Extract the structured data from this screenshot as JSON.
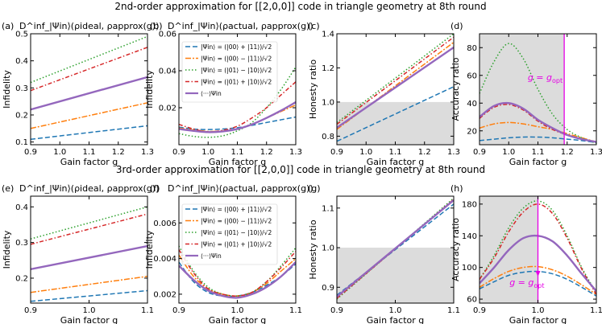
{
  "rows": [
    {
      "title": "2nd-order approximation for [[2,0,0]] code in triangle geometry at 8th round"
    },
    {
      "title": "3rd-order approximation for [[2,0,0]] code in triangle geometry at 8th round"
    }
  ],
  "annotation": "g = g",
  "annotation_sub": "opt",
  "legend": {
    "entries": [
      "|Ψin⟩ = (|00⟩ + |11⟩)/√2",
      "|Ψin⟩ = (|00⟩ − |11⟩)/√2",
      "|Ψin⟩ = (|01⟩ − |10⟩)/√2",
      "|Ψin⟩ = (|01⟩ + |10⟩)/√2",
      "⟨···⟩Ψin"
    ]
  },
  "series_styles": [
    {
      "name": "(|00>+|11>)/√2",
      "color": "#1f77b4",
      "dash": "6,3"
    },
    {
      "name": "(|00>-|11>)/√2",
      "color": "#ff7f0e",
      "dash": "7,2,2,2"
    },
    {
      "name": "(|01>-|10>)/√2",
      "color": "#2ca02c",
      "dash": "1.5,2.5"
    },
    {
      "name": "(|01>+|10>)/√2",
      "color": "#d62728",
      "dash": "5,2.5,1.5,2.5"
    },
    {
      "name": "average",
      "color": "#9467bd",
      "dash": ""
    }
  ],
  "chart_data": [
    {
      "type": "line",
      "panel": "(a)",
      "title": "D^inf_|Ψin⟩(ρideal, ρapprox(g))",
      "xlabel": "Gain factor g",
      "ylabel": "Infidelity",
      "xlim": [
        0.9,
        1.3
      ],
      "ylim": [
        0.09,
        0.5
      ],
      "xticks": [
        0.9,
        1.0,
        1.1,
        1.2,
        1.3
      ],
      "yticks": [
        0.1,
        0.2,
        0.3,
        0.4,
        0.5
      ],
      "x": [
        0.9,
        1.3
      ],
      "series": [
        {
          "name": "(|00>+|11>)/√2",
          "values": [
            0.11,
            0.16
          ]
        },
        {
          "name": "(|00>-|11>)/√2",
          "values": [
            0.15,
            0.245
          ]
        },
        {
          "name": "(|01>-|10>)/√2",
          "values": [
            0.32,
            0.49
          ]
        },
        {
          "name": "(|01>+|10>)/√2",
          "values": [
            0.29,
            0.45
          ]
        },
        {
          "name": "average",
          "values": [
            0.22,
            0.34
          ]
        }
      ]
    },
    {
      "type": "line",
      "panel": "(b)",
      "title": "D^inf_|Ψin⟩(ρactual, ρapprox(g))",
      "xlabel": "Gain factor g",
      "ylabel": "Infidelity",
      "xlim": [
        0.9,
        1.3
      ],
      "ylim": [
        0,
        0.06
      ],
      "xticks": [
        0.9,
        1.0,
        1.1,
        1.2,
        1.3
      ],
      "yticks": [
        0.02,
        0.04,
        0.06
      ],
      "x": [
        0.9,
        0.95,
        1.0,
        1.05,
        1.1,
        1.15,
        1.2,
        1.25,
        1.3
      ],
      "series": [
        {
          "name": "(|00>+|11>)/√2",
          "values": [
            0.0095,
            0.0085,
            0.0082,
            0.0085,
            0.0092,
            0.0105,
            0.012,
            0.0135,
            0.015
          ]
        },
        {
          "name": "(|00>-|11>)/√2",
          "values": [
            0.009,
            0.008,
            0.0072,
            0.0075,
            0.0085,
            0.011,
            0.0145,
            0.018,
            0.0215
          ]
        },
        {
          "name": "(|01>-|10>)/√2",
          "values": [
            0.006,
            0.0045,
            0.004,
            0.0048,
            0.0075,
            0.012,
            0.02,
            0.03,
            0.042
          ]
        },
        {
          "name": "(|01>+|10>)/√2",
          "values": [
            0.011,
            0.0085,
            0.007,
            0.0078,
            0.01,
            0.0145,
            0.02,
            0.027,
            0.034
          ]
        },
        {
          "name": "average",
          "values": [
            0.0085,
            0.0075,
            0.0068,
            0.0072,
            0.0085,
            0.011,
            0.0145,
            0.0185,
            0.023
          ]
        }
      ]
    },
    {
      "type": "line",
      "panel": "(c)",
      "title": "",
      "xlabel": "Gain factor g",
      "ylabel": "Honesty ratio",
      "xlim": [
        0.9,
        1.3
      ],
      "ylim": [
        0.75,
        1.4
      ],
      "xticks": [
        0.9,
        1.0,
        1.1,
        1.2,
        1.3
      ],
      "yticks": [
        0.8,
        1.0,
        1.2,
        1.4
      ],
      "shade_below": 1.0,
      "x": [
        0.9,
        1.3
      ],
      "series": [
        {
          "name": "(|00>+|11>)/√2",
          "values": [
            0.77,
            1.09
          ]
        },
        {
          "name": "(|00>-|11>)/√2",
          "values": [
            0.84,
            1.35
          ]
        },
        {
          "name": "(|01>-|10>)/√2",
          "values": [
            0.88,
            1.4
          ]
        },
        {
          "name": "(|01>+|10>)/√2",
          "values": [
            0.87,
            1.38
          ]
        },
        {
          "name": "average",
          "values": [
            0.85,
            1.32
          ]
        }
      ]
    },
    {
      "type": "line",
      "panel": "(d)",
      "title": "",
      "xlabel": "Gain factor g",
      "ylabel": "Accuracy ratio",
      "xlim": [
        0.9,
        1.3
      ],
      "ylim": [
        10,
        90
      ],
      "xticks": [
        0.9,
        1.0,
        1.1,
        1.2,
        1.3
      ],
      "yticks": [
        20,
        40,
        60,
        80
      ],
      "shade_left_of": 1.19,
      "vline": 1.19,
      "x": [
        0.9,
        0.95,
        1.0,
        1.05,
        1.1,
        1.15,
        1.2,
        1.25,
        1.3
      ],
      "series": [
        {
          "name": "(|00>+|11>)/√2",
          "values": [
            13,
            14,
            15,
            15.5,
            15.5,
            15,
            14,
            13,
            11.5
          ]
        },
        {
          "name": "(|00>-|11>)/√2",
          "values": [
            22,
            25,
            26,
            25,
            23,
            21,
            18,
            15,
            12
          ]
        },
        {
          "name": "(|01>-|10>)/√2",
          "values": [
            47,
            70,
            83,
            72,
            50,
            32,
            21,
            15,
            11
          ]
        },
        {
          "name": "(|01>+|10>)/√2",
          "values": [
            29,
            37,
            39,
            35,
            27,
            21,
            17,
            14,
            12
          ]
        },
        {
          "name": "average",
          "values": [
            30,
            38,
            40,
            36,
            28,
            22,
            17,
            14,
            12
          ]
        }
      ]
    },
    {
      "type": "line",
      "panel": "(e)",
      "title": "D^inf_|Ψin⟩(ρideal, ρapprox(g))",
      "xlabel": "Gain factor g",
      "ylabel": "Infidelity",
      "xlim": [
        0.9,
        1.1
      ],
      "ylim": [
        0.13,
        0.43
      ],
      "xticks": [
        0.9,
        1.0,
        1.1
      ],
      "yticks": [
        0.2,
        0.3,
        0.4
      ],
      "x": [
        0.9,
        1.1
      ],
      "series": [
        {
          "name": "(|00>+|11>)/√2",
          "values": [
            0.135,
            0.165
          ]
        },
        {
          "name": "(|00>-|11>)/√2",
          "values": [
            0.16,
            0.205
          ]
        },
        {
          "name": "(|01>-|10>)/√2",
          "values": [
            0.31,
            0.4
          ]
        },
        {
          "name": "(|01>+|10>)/√2",
          "values": [
            0.295,
            0.38
          ]
        },
        {
          "name": "average",
          "values": [
            0.225,
            0.29
          ]
        }
      ]
    },
    {
      "type": "line",
      "panel": "(f)",
      "title": "D^inf_|Ψin⟩(ρactual, ρapprox(g))",
      "xlabel": "Gain factor g",
      "ylabel": "Infidelity",
      "xlim": [
        0.9,
        1.1
      ],
      "ylim": [
        0.0015,
        0.0075
      ],
      "xticks": [
        0.9,
        1.0,
        1.1
      ],
      "yticks": [
        0.002,
        0.004,
        0.006
      ],
      "x": [
        0.9,
        0.925,
        0.95,
        0.975,
        1.0,
        1.025,
        1.05,
        1.075,
        1.1
      ],
      "series": [
        {
          "name": "(|00>+|11>)/√2",
          "values": [
            0.0038,
            0.0027,
            0.0021,
            0.0019,
            0.0019,
            0.0021,
            0.0025,
            0.003,
            0.0037
          ]
        },
        {
          "name": "(|00>-|11>)/√2",
          "values": [
            0.0042,
            0.003,
            0.0023,
            0.002,
            0.0019,
            0.0021,
            0.0026,
            0.0033,
            0.004
          ]
        },
        {
          "name": "(|01>-|10>)/√2",
          "values": [
            0.0047,
            0.0033,
            0.0024,
            0.002,
            0.0019,
            0.0021,
            0.0027,
            0.0036,
            0.0046
          ]
        },
        {
          "name": "(|01>+|10>)/√2",
          "values": [
            0.0045,
            0.0032,
            0.0023,
            0.002,
            0.0019,
            0.0021,
            0.0027,
            0.0035,
            0.0044
          ]
        },
        {
          "name": "average",
          "values": [
            0.0036,
            0.0028,
            0.0022,
            0.0019,
            0.0018,
            0.002,
            0.0024,
            0.003,
            0.0038
          ]
        }
      ]
    },
    {
      "type": "line",
      "panel": "(g)",
      "title": "",
      "xlabel": "Gain factor g",
      "ylabel": "Honesty ratio",
      "xlim": [
        0.9,
        1.1
      ],
      "ylim": [
        0.86,
        1.13
      ],
      "xticks": [
        0.9,
        1.0,
        1.1
      ],
      "yticks": [
        0.9,
        1.0,
        1.1
      ],
      "shade_below": 1.0,
      "x": [
        0.9,
        1.1
      ],
      "series": [
        {
          "name": "(|00>+|11>)/√2",
          "values": [
            0.88,
            1.11
          ]
        },
        {
          "name": "(|00>-|11>)/√2",
          "values": [
            0.875,
            1.12
          ]
        },
        {
          "name": "(|01>-|10>)/√2",
          "values": [
            0.87,
            1.125
          ]
        },
        {
          "name": "(|01>+|10>)/√2",
          "values": [
            0.872,
            1.122
          ]
        },
        {
          "name": "average",
          "values": [
            0.876,
            1.12
          ]
        }
      ]
    },
    {
      "type": "line",
      "panel": "(h)",
      "title": "",
      "xlabel": "Gain factor g",
      "ylabel": "Accuracy ratio",
      "xlim": [
        0.9,
        1.1
      ],
      "ylim": [
        55,
        190
      ],
      "xticks": [
        0.9,
        1.0,
        1.1
      ],
      "yticks": [
        60,
        100,
        140,
        180
      ],
      "shade_left_of": 1.0,
      "vline": 1.0,
      "x": [
        0.9,
        0.925,
        0.95,
        0.975,
        1.0,
        1.025,
        1.05,
        1.075,
        1.1
      ],
      "series": [
        {
          "name": "(|00>+|11>)/√2",
          "values": [
            73,
            82,
            90,
            94,
            95,
            92,
            85,
            75,
            64
          ]
        },
        {
          "name": "(|00>-|11>)/√2",
          "values": [
            75,
            86,
            95,
            100,
            101,
            97,
            89,
            78,
            66
          ]
        },
        {
          "name": "(|01>-|10>)/√2",
          "values": [
            85,
            115,
            150,
            175,
            184,
            172,
            140,
            100,
            68
          ]
        },
        {
          "name": "(|01>+|10>)/√2",
          "values": [
            85,
            112,
            145,
            170,
            180,
            168,
            137,
            98,
            66
          ]
        },
        {
          "name": "average",
          "values": [
            80,
            100,
            122,
            137,
            140,
            133,
            115,
            92,
            70
          ]
        }
      ]
    }
  ]
}
